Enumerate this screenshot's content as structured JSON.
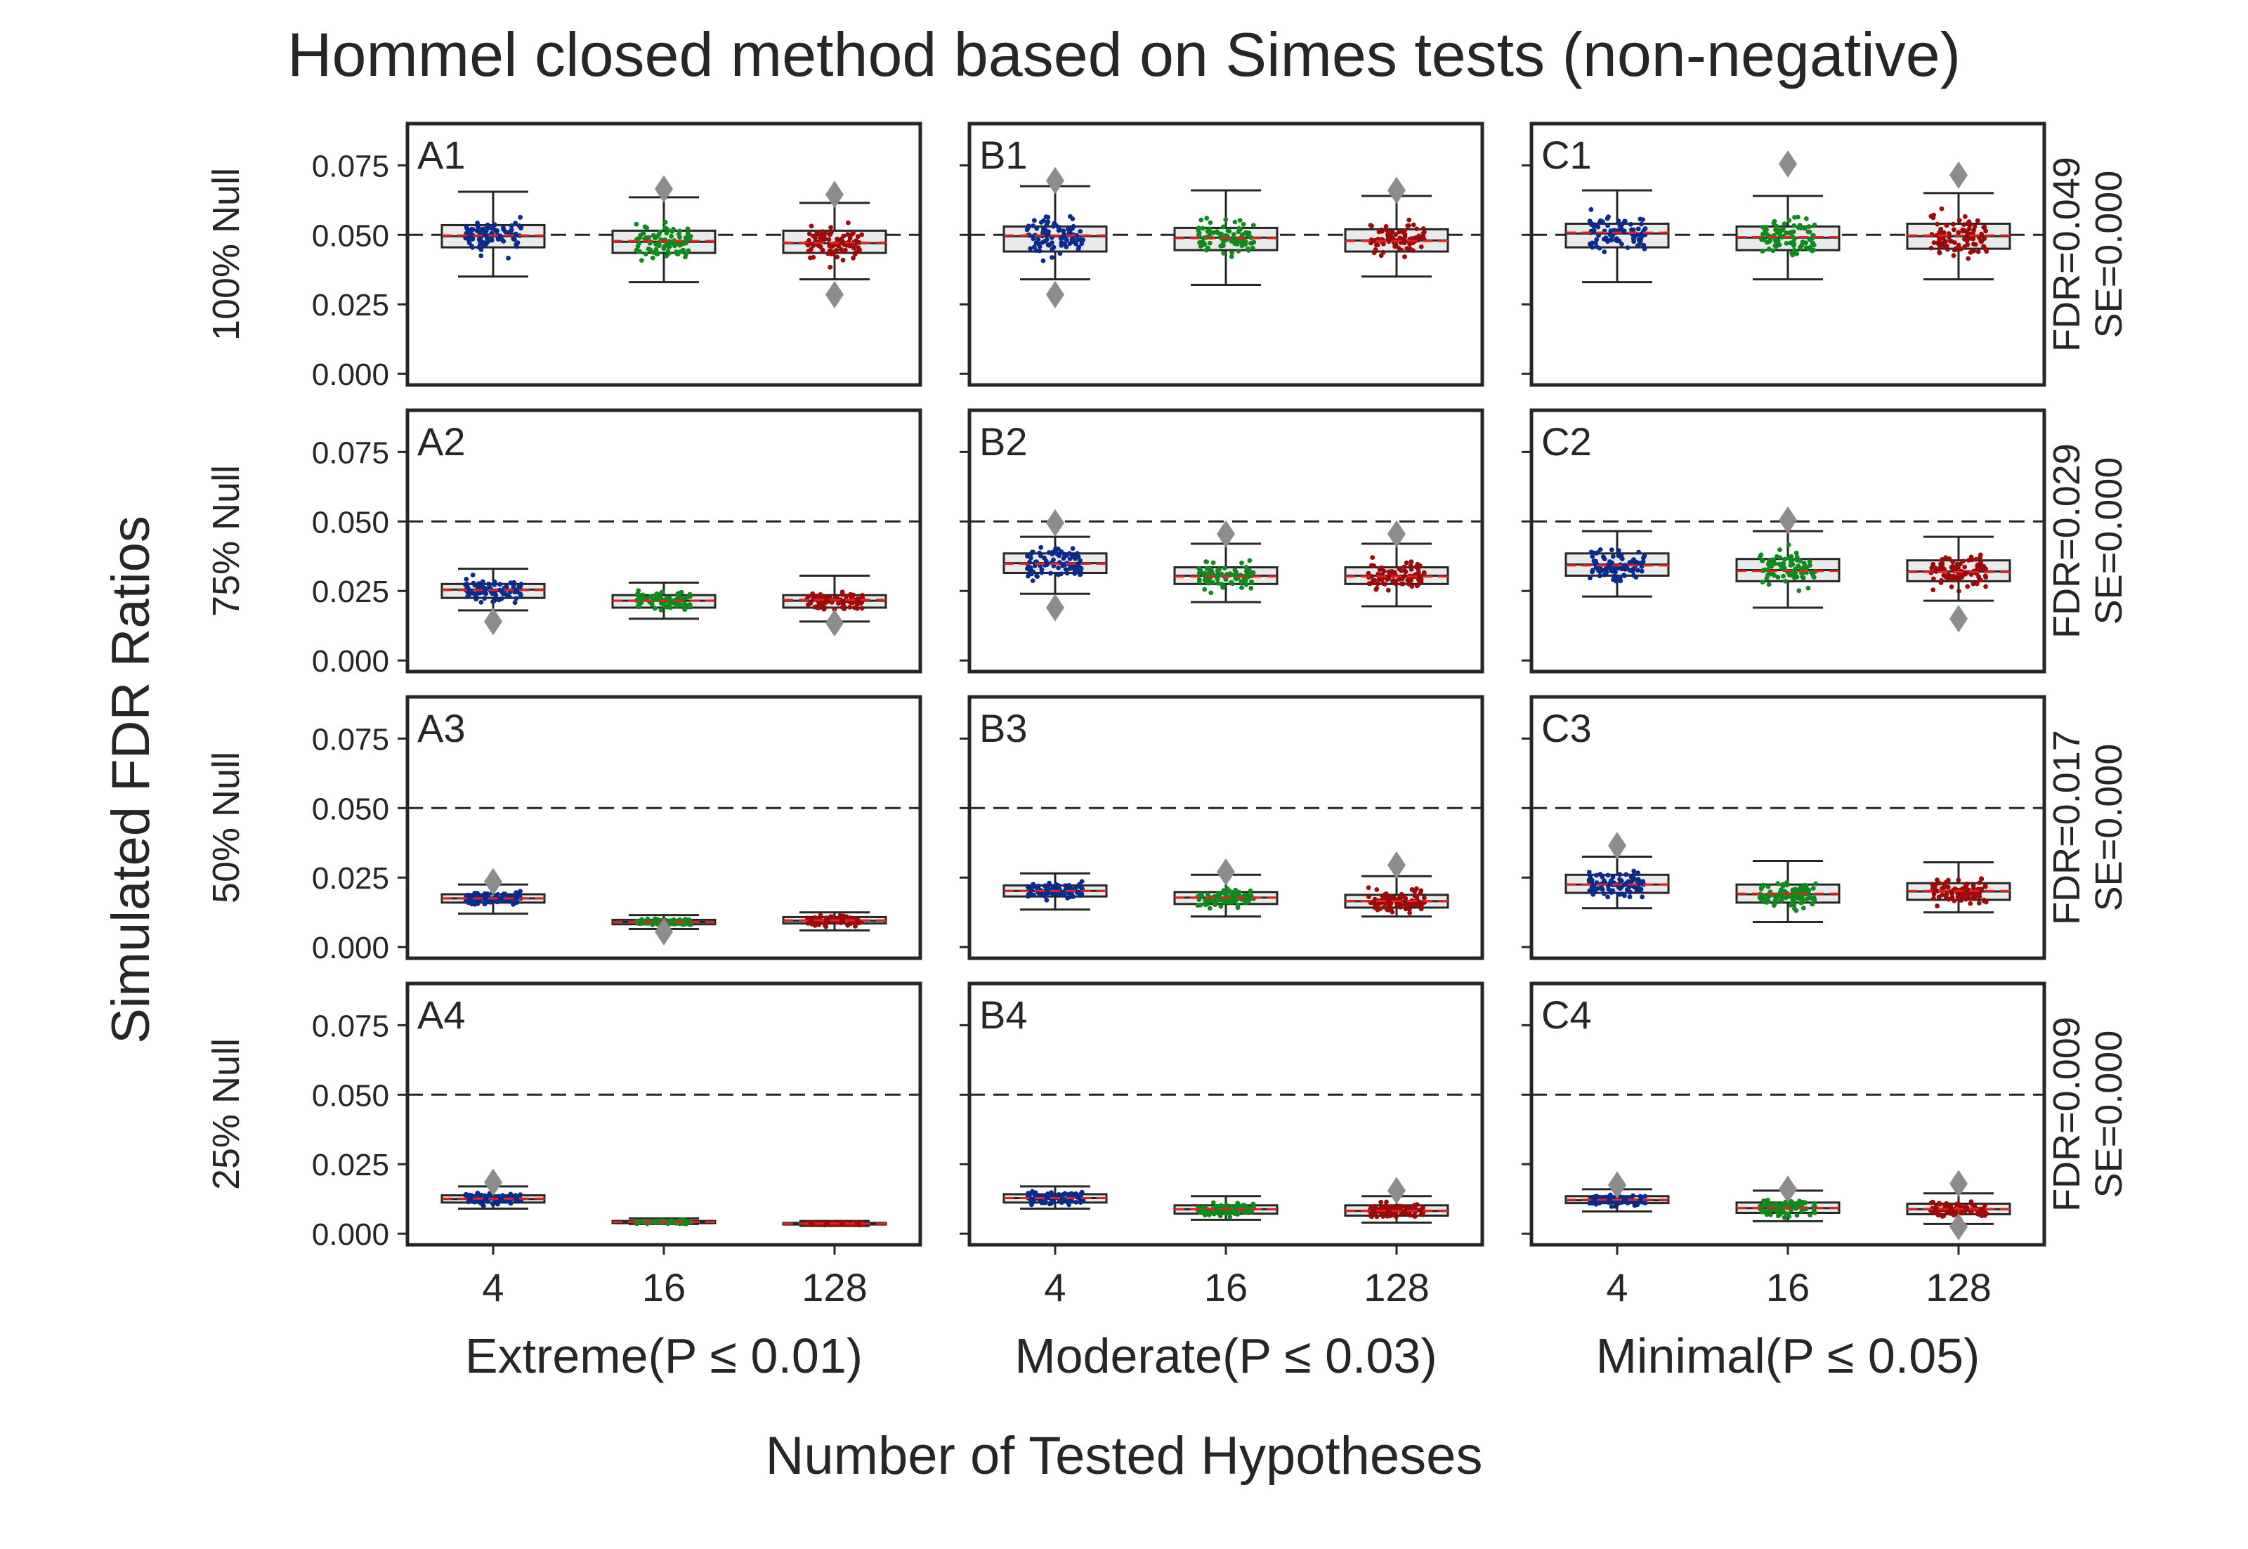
{
  "chart_data": {
    "type": "box",
    "title": "Hommel closed method based on Simes tests (non-negative)",
    "ylabel": "Simulated FDR Ratios",
    "xlabel": "Number of Tested Hypotheses",
    "ylim": [
      -0.004,
      0.09
    ],
    "yticks": [
      "0.000",
      "0.025",
      "0.050",
      "0.075"
    ],
    "ytick_values": [
      0.0,
      0.025,
      0.05,
      0.075
    ],
    "reference_line": 0.05,
    "categories": [
      "4",
      "16",
      "128"
    ],
    "series_colors": [
      "#0a2a8c",
      "#0f8a1e",
      "#9c0a0a"
    ],
    "outlier_color": "#8c8c8c",
    "mean_line_color": "#e8211c",
    "columns": [
      "Extreme(P ≤ 0.01)",
      "Moderate(P ≤ 0.03)",
      "Minimal(P ≤ 0.05)"
    ],
    "rows": [
      {
        "label": "100% Null",
        "annotation": [
          "FDR=0.049",
          "SE=0.000"
        ],
        "panels": [
          {
            "id": "A1",
            "boxes": [
              {
                "whislo": 0.035,
                "q1": 0.0455,
                "med": 0.0495,
                "q3": 0.0535,
                "whishi": 0.0655,
                "mean": 0.0498,
                "fliers": []
              },
              {
                "whislo": 0.033,
                "q1": 0.0435,
                "med": 0.0475,
                "q3": 0.0515,
                "whishi": 0.0635,
                "mean": 0.0478,
                "fliers": [
                  0.0665
                ]
              },
              {
                "whislo": 0.034,
                "q1": 0.0435,
                "med": 0.047,
                "q3": 0.0515,
                "whishi": 0.0615,
                "mean": 0.0472,
                "fliers": [
                  0.0645,
                  0.0285
                ]
              }
            ]
          },
          {
            "id": "B1",
            "boxes": [
              {
                "whislo": 0.034,
                "q1": 0.044,
                "med": 0.0495,
                "q3": 0.053,
                "whishi": 0.0675,
                "mean": 0.0498,
                "fliers": [
                  0.0695,
                  0.0285
                ]
              },
              {
                "whislo": 0.032,
                "q1": 0.0445,
                "med": 0.049,
                "q3": 0.0525,
                "whishi": 0.066,
                "mean": 0.0488,
                "fliers": []
              },
              {
                "whislo": 0.035,
                "q1": 0.044,
                "med": 0.048,
                "q3": 0.052,
                "whishi": 0.064,
                "mean": 0.0478,
                "fliers": [
                  0.066
                ]
              }
            ]
          },
          {
            "id": "C1",
            "boxes": [
              {
                "whislo": 0.033,
                "q1": 0.0455,
                "med": 0.0505,
                "q3": 0.054,
                "whishi": 0.066,
                "mean": 0.0508,
                "fliers": []
              },
              {
                "whislo": 0.034,
                "q1": 0.0445,
                "med": 0.049,
                "q3": 0.053,
                "whishi": 0.064,
                "mean": 0.0492,
                "fliers": [
                  0.0755
                ]
              },
              {
                "whislo": 0.034,
                "q1": 0.045,
                "med": 0.0495,
                "q3": 0.054,
                "whishi": 0.065,
                "mean": 0.0498,
                "fliers": [
                  0.0715
                ]
              }
            ]
          }
        ]
      },
      {
        "label": "75% Null",
        "annotation": [
          "FDR=0.029",
          "SE=0.000"
        ],
        "panels": [
          {
            "id": "A2",
            "boxes": [
              {
                "whislo": 0.018,
                "q1": 0.0225,
                "med": 0.0255,
                "q3": 0.0275,
                "whishi": 0.033,
                "mean": 0.0253,
                "fliers": [
                  0.014
                ]
              },
              {
                "whislo": 0.015,
                "q1": 0.019,
                "med": 0.0215,
                "q3": 0.0235,
                "whishi": 0.028,
                "mean": 0.0215,
                "fliers": []
              },
              {
                "whislo": 0.014,
                "q1": 0.019,
                "med": 0.0215,
                "q3": 0.0235,
                "whishi": 0.0305,
                "mean": 0.0218,
                "fliers": [
                  0.0135
                ]
              }
            ]
          },
          {
            "id": "B2",
            "boxes": [
              {
                "whislo": 0.024,
                "q1": 0.0315,
                "med": 0.035,
                "q3": 0.0385,
                "whishi": 0.0445,
                "mean": 0.0348,
                "fliers": [
                  0.0495,
                  0.019
                ]
              },
              {
                "whislo": 0.021,
                "q1": 0.0275,
                "med": 0.0305,
                "q3": 0.0335,
                "whishi": 0.042,
                "mean": 0.0302,
                "fliers": [
                  0.0455
                ]
              },
              {
                "whislo": 0.0195,
                "q1": 0.0275,
                "med": 0.0305,
                "q3": 0.0335,
                "whishi": 0.042,
                "mean": 0.0302,
                "fliers": [
                  0.0455
                ]
              }
            ]
          },
          {
            "id": "C2",
            "boxes": [
              {
                "whislo": 0.023,
                "q1": 0.0305,
                "med": 0.0345,
                "q3": 0.0385,
                "whishi": 0.0465,
                "mean": 0.0342,
                "fliers": []
              },
              {
                "whislo": 0.019,
                "q1": 0.0285,
                "med": 0.0325,
                "q3": 0.0365,
                "whishi": 0.0465,
                "mean": 0.0322,
                "fliers": [
                  0.0505
                ]
              },
              {
                "whislo": 0.0215,
                "q1": 0.0285,
                "med": 0.032,
                "q3": 0.036,
                "whishi": 0.0445,
                "mean": 0.0318,
                "fliers": [
                  0.015
                ]
              }
            ]
          }
        ]
      },
      {
        "label": "50% Null",
        "annotation": [
          "FDR=0.017",
          "SE=0.000"
        ],
        "panels": [
          {
            "id": "A3",
            "boxes": [
              {
                "whislo": 0.012,
                "q1": 0.016,
                "med": 0.0175,
                "q3": 0.019,
                "whishi": 0.0225,
                "mean": 0.0175,
                "fliers": [
                  0.0235
                ]
              },
              {
                "whislo": 0.0065,
                "q1": 0.0082,
                "med": 0.009,
                "q3": 0.0098,
                "whishi": 0.0115,
                "mean": 0.009,
                "fliers": [
                  0.0055
                ]
              },
              {
                "whislo": 0.006,
                "q1": 0.0085,
                "med": 0.0095,
                "q3": 0.0108,
                "whishi": 0.0125,
                "mean": 0.0096,
                "fliers": []
              }
            ]
          },
          {
            "id": "B3",
            "boxes": [
              {
                "whislo": 0.0135,
                "q1": 0.0182,
                "med": 0.0202,
                "q3": 0.0222,
                "whishi": 0.0265,
                "mean": 0.0202,
                "fliers": []
              },
              {
                "whislo": 0.011,
                "q1": 0.0155,
                "med": 0.0178,
                "q3": 0.0198,
                "whishi": 0.026,
                "mean": 0.0178,
                "fliers": [
                  0.027
                ]
              },
              {
                "whislo": 0.011,
                "q1": 0.0142,
                "med": 0.0165,
                "q3": 0.0188,
                "whishi": 0.0255,
                "mean": 0.0166,
                "fliers": [
                  0.0295
                ]
              }
            ]
          },
          {
            "id": "C3",
            "boxes": [
              {
                "whislo": 0.014,
                "q1": 0.0195,
                "med": 0.0225,
                "q3": 0.026,
                "whishi": 0.0325,
                "mean": 0.0225,
                "fliers": [
                  0.0365
                ]
              },
              {
                "whislo": 0.009,
                "q1": 0.016,
                "med": 0.019,
                "q3": 0.0225,
                "whishi": 0.031,
                "mean": 0.0192,
                "fliers": []
              },
              {
                "whislo": 0.0125,
                "q1": 0.017,
                "med": 0.02,
                "q3": 0.023,
                "whishi": 0.0305,
                "mean": 0.0202,
                "fliers": []
              }
            ]
          }
        ]
      },
      {
        "label": "25% Null",
        "annotation": [
          "FDR=0.009",
          "SE=0.000"
        ],
        "panels": [
          {
            "id": "A4",
            "boxes": [
              {
                "whislo": 0.009,
                "q1": 0.0112,
                "med": 0.0125,
                "q3": 0.0138,
                "whishi": 0.017,
                "mean": 0.0126,
                "fliers": [
                  0.0185
                ]
              },
              {
                "whislo": 0.0035,
                "q1": 0.0038,
                "med": 0.0042,
                "q3": 0.0046,
                "whishi": 0.0055,
                "mean": 0.0042,
                "fliers": []
              },
              {
                "whislo": 0.0028,
                "q1": 0.0033,
                "med": 0.0036,
                "q3": 0.0039,
                "whishi": 0.0046,
                "mean": 0.0036,
                "fliers": []
              }
            ]
          },
          {
            "id": "B4",
            "boxes": [
              {
                "whislo": 0.009,
                "q1": 0.0112,
                "med": 0.0128,
                "q3": 0.0142,
                "whishi": 0.017,
                "mean": 0.0128,
                "fliers": []
              },
              {
                "whislo": 0.005,
                "q1": 0.0072,
                "med": 0.0088,
                "q3": 0.0102,
                "whishi": 0.0135,
                "mean": 0.0088,
                "fliers": []
              },
              {
                "whislo": 0.004,
                "q1": 0.0065,
                "med": 0.0082,
                "q3": 0.0102,
                "whishi": 0.0135,
                "mean": 0.0083,
                "fliers": [
                  0.0155
                ]
              }
            ]
          },
          {
            "id": "C4",
            "boxes": [
              {
                "whislo": 0.008,
                "q1": 0.011,
                "med": 0.012,
                "q3": 0.0135,
                "whishi": 0.016,
                "mean": 0.0122,
                "fliers": [
                  0.0175
                ]
              },
              {
                "whislo": 0.0045,
                "q1": 0.0075,
                "med": 0.0092,
                "q3": 0.0112,
                "whishi": 0.0155,
                "mean": 0.0093,
                "fliers": [
                  0.016
                ]
              },
              {
                "whislo": 0.0035,
                "q1": 0.007,
                "med": 0.0088,
                "q3": 0.0108,
                "whishi": 0.0145,
                "mean": 0.0089,
                "fliers": [
                  0.018,
                  0.0025
                ]
              }
            ]
          }
        ]
      }
    ]
  }
}
